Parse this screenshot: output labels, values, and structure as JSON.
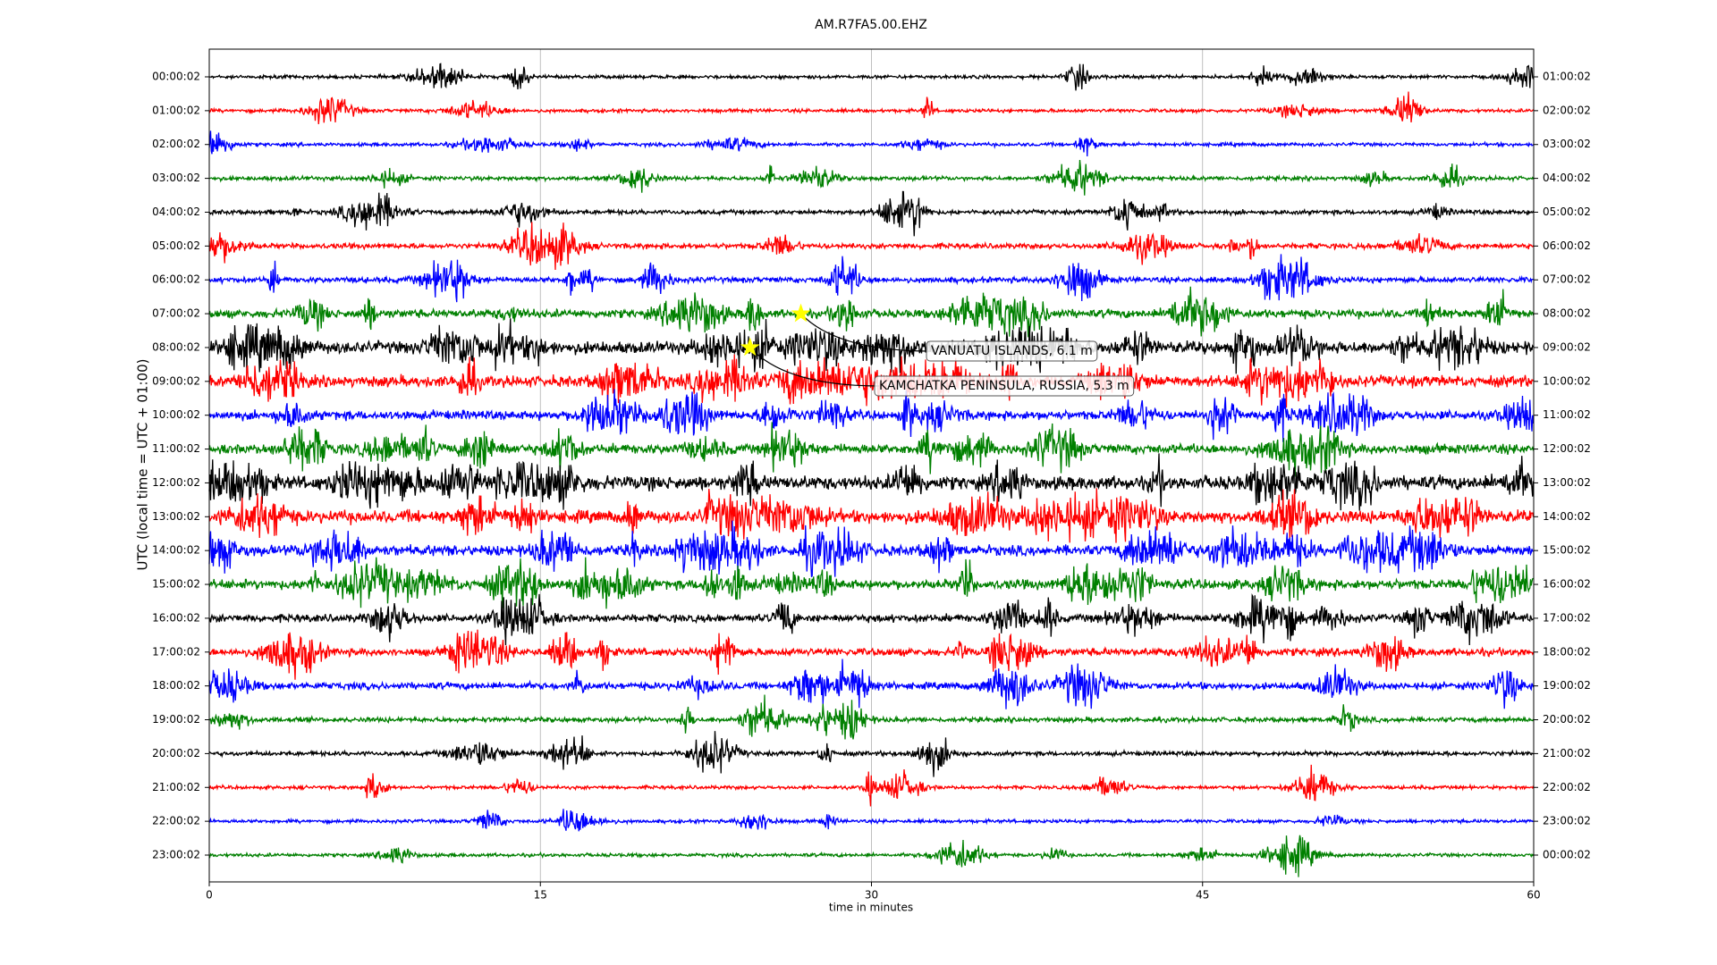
{
  "chart_data": {
    "type": "dayplot",
    "title": "AM.R7FA5.00.EHZ",
    "xlabel": "time in minutes",
    "ylabel": "UTC (local time = UTC + 01:00)",
    "xlim": [
      0,
      60
    ],
    "xticks": [
      0,
      15,
      30,
      45,
      60
    ],
    "grid": true,
    "colors": [
      "#000000",
      "#ff0000",
      "#0000ff",
      "#008000"
    ],
    "y_labels_left": [
      "00:00:02",
      "01:00:02",
      "02:00:02",
      "03:00:02",
      "04:00:02",
      "05:00:02",
      "06:00:02",
      "07:00:02",
      "08:00:02",
      "09:00:02",
      "10:00:02",
      "11:00:02",
      "12:00:02",
      "13:00:02",
      "14:00:02",
      "15:00:02",
      "16:00:02",
      "17:00:02",
      "18:00:02",
      "19:00:02",
      "20:00:02",
      "21:00:02",
      "22:00:02",
      "23:00:02"
    ],
    "y_labels_right": [
      "01:00:02",
      "02:00:02",
      "03:00:02",
      "04:00:02",
      "05:00:02",
      "06:00:02",
      "07:00:02",
      "08:00:02",
      "09:00:02",
      "10:00:02",
      "11:00:02",
      "12:00:02",
      "13:00:02",
      "14:00:02",
      "15:00:02",
      "16:00:02",
      "17:00:02",
      "18:00:02",
      "19:00:02",
      "20:00:02",
      "21:00:02",
      "22:00:02",
      "23:00:02",
      "00:00:02"
    ],
    "annotations": [
      {
        "text": "VANUATU ISLANDS, 6.1 m",
        "x": 26.8,
        "row": 7
      },
      {
        "text": "KAMCHATKA PENINSULA, RUSSIA, 5.3 m",
        "x": 24.5,
        "row": 8
      }
    ]
  }
}
